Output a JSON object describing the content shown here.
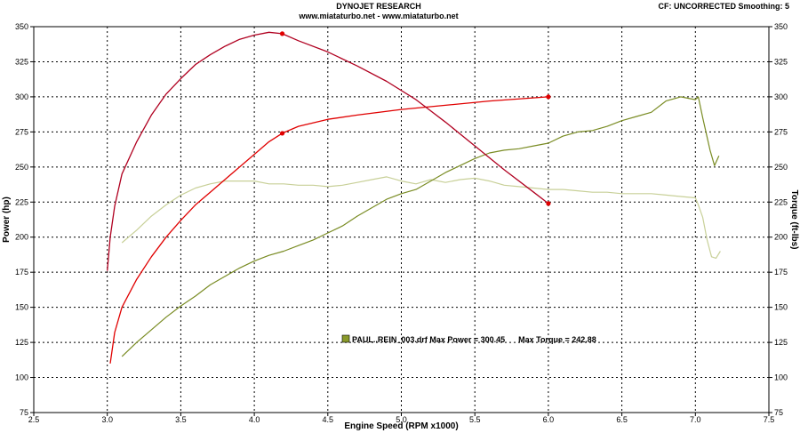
{
  "header": {
    "line1": "DYNOJET RESEARCH",
    "line2": "www.miataturbo.net - www.miataturbo.net",
    "right": "CF: UNCORRECTED  Smoothing: 5"
  },
  "chart_data": {
    "type": "line",
    "xlabel": "Engine Speed (RPM x1000)",
    "ylabel": "Power (hp)",
    "y2label": "Torque (ft-lbs)",
    "xlim": [
      2.5,
      7.5
    ],
    "ylim": [
      75,
      350
    ],
    "y2lim": [
      75,
      350
    ],
    "xticks": [
      "2.5",
      "3.0",
      "3.5",
      "4.0",
      "4.5",
      "5.0",
      "5.5",
      "6.0",
      "6.5",
      "7.0",
      "7.5"
    ],
    "yticks": [
      "75",
      "100",
      "125",
      "150",
      "175",
      "200",
      "225",
      "250",
      "275",
      "300",
      "325",
      "350"
    ],
    "grid": true,
    "legend": {
      "text": "PAUL..REIN_003.drf Max Power = 300.45      Max Torque = 242.88",
      "swatch_color": "#8a9a2a"
    },
    "colors": {
      "red_power": "#e00000",
      "red_torque": "#b00020",
      "olive_power": "#7a8c24",
      "olive_torque": "#c8d098"
    },
    "series": [
      {
        "key": "red_power",
        "points": [
          [
            3.02,
            110
          ],
          [
            3.05,
            132
          ],
          [
            3.1,
            150
          ],
          [
            3.2,
            170
          ],
          [
            3.3,
            186
          ],
          [
            3.4,
            200
          ],
          [
            3.5,
            212
          ],
          [
            3.6,
            223
          ],
          [
            3.7,
            232
          ],
          [
            3.8,
            241
          ],
          [
            3.9,
            250
          ],
          [
            4.0,
            259
          ],
          [
            4.1,
            268
          ],
          [
            4.19,
            274
          ],
          [
            4.3,
            279
          ],
          [
            4.5,
            284
          ],
          [
            4.7,
            287
          ],
          [
            5.0,
            291
          ],
          [
            5.3,
            294
          ],
          [
            5.6,
            297
          ],
          [
            6.0,
            300
          ]
        ],
        "markers": [
          [
            4.19,
            274
          ],
          [
            6.0,
            300
          ]
        ]
      },
      {
        "key": "red_torque",
        "points": [
          [
            3.0,
            176
          ],
          [
            3.02,
            200
          ],
          [
            3.05,
            222
          ],
          [
            3.1,
            245
          ],
          [
            3.2,
            268
          ],
          [
            3.3,
            287
          ],
          [
            3.4,
            302
          ],
          [
            3.5,
            313
          ],
          [
            3.6,
            323
          ],
          [
            3.7,
            330
          ],
          [
            3.8,
            336
          ],
          [
            3.9,
            341
          ],
          [
            4.0,
            344
          ],
          [
            4.1,
            346
          ],
          [
            4.19,
            345
          ],
          [
            4.3,
            340
          ],
          [
            4.5,
            332
          ],
          [
            4.7,
            322
          ],
          [
            4.9,
            311
          ],
          [
            5.1,
            298
          ],
          [
            5.3,
            282
          ],
          [
            5.5,
            265
          ],
          [
            5.7,
            248
          ],
          [
            5.9,
            232
          ],
          [
            6.0,
            224
          ]
        ],
        "markers": [
          [
            4.19,
            345
          ],
          [
            6.0,
            224
          ]
        ]
      },
      {
        "key": "olive_power",
        "points": [
          [
            3.1,
            115
          ],
          [
            3.2,
            125
          ],
          [
            3.3,
            134
          ],
          [
            3.4,
            143
          ],
          [
            3.5,
            151
          ],
          [
            3.6,
            158
          ],
          [
            3.7,
            166
          ],
          [
            3.8,
            172
          ],
          [
            3.9,
            178
          ],
          [
            4.0,
            183
          ],
          [
            4.1,
            187
          ],
          [
            4.2,
            190
          ],
          [
            4.3,
            194
          ],
          [
            4.4,
            198
          ],
          [
            4.5,
            203
          ],
          [
            4.6,
            208
          ],
          [
            4.7,
            215
          ],
          [
            4.8,
            221
          ],
          [
            4.9,
            227
          ],
          [
            5.0,
            231
          ],
          [
            5.1,
            234
          ],
          [
            5.2,
            240
          ],
          [
            5.3,
            246
          ],
          [
            5.4,
            251
          ],
          [
            5.5,
            256
          ],
          [
            5.6,
            260
          ],
          [
            5.7,
            262
          ],
          [
            5.8,
            263
          ],
          [
            5.9,
            265
          ],
          [
            6.0,
            267
          ],
          [
            6.1,
            272
          ],
          [
            6.2,
            275
          ],
          [
            6.3,
            276
          ],
          [
            6.4,
            279
          ],
          [
            6.5,
            283
          ],
          [
            6.6,
            286
          ],
          [
            6.7,
            289
          ],
          [
            6.8,
            297
          ],
          [
            6.9,
            300
          ],
          [
            7.0,
            298
          ],
          [
            7.02,
            300
          ],
          [
            7.05,
            285
          ],
          [
            7.1,
            262
          ],
          [
            7.13,
            251
          ],
          [
            7.16,
            258
          ]
        ]
      },
      {
        "key": "olive_torque",
        "points": [
          [
            3.1,
            196
          ],
          [
            3.2,
            205
          ],
          [
            3.3,
            215
          ],
          [
            3.4,
            223
          ],
          [
            3.5,
            230
          ],
          [
            3.6,
            235
          ],
          [
            3.7,
            238
          ],
          [
            3.8,
            240
          ],
          [
            3.9,
            240
          ],
          [
            4.0,
            240
          ],
          [
            4.1,
            238
          ],
          [
            4.2,
            238
          ],
          [
            4.3,
            237
          ],
          [
            4.4,
            237
          ],
          [
            4.5,
            236
          ],
          [
            4.6,
            237
          ],
          [
            4.7,
            239
          ],
          [
            4.8,
            241
          ],
          [
            4.9,
            243
          ],
          [
            5.0,
            240
          ],
          [
            5.1,
            238
          ],
          [
            5.2,
            241
          ],
          [
            5.3,
            239
          ],
          [
            5.4,
            241
          ],
          [
            5.5,
            242
          ],
          [
            5.6,
            240
          ],
          [
            5.7,
            237
          ],
          [
            5.8,
            236
          ],
          [
            5.9,
            235
          ],
          [
            6.0,
            234
          ],
          [
            6.1,
            234
          ],
          [
            6.2,
            233
          ],
          [
            6.3,
            232
          ],
          [
            6.4,
            232
          ],
          [
            6.5,
            231
          ],
          [
            6.6,
            231
          ],
          [
            6.7,
            231
          ],
          [
            6.8,
            230
          ],
          [
            6.9,
            229
          ],
          [
            7.0,
            228
          ],
          [
            7.02,
            223
          ],
          [
            7.05,
            214
          ],
          [
            7.08,
            198
          ],
          [
            7.11,
            186
          ],
          [
            7.14,
            185
          ],
          [
            7.17,
            190
          ]
        ]
      }
    ]
  }
}
